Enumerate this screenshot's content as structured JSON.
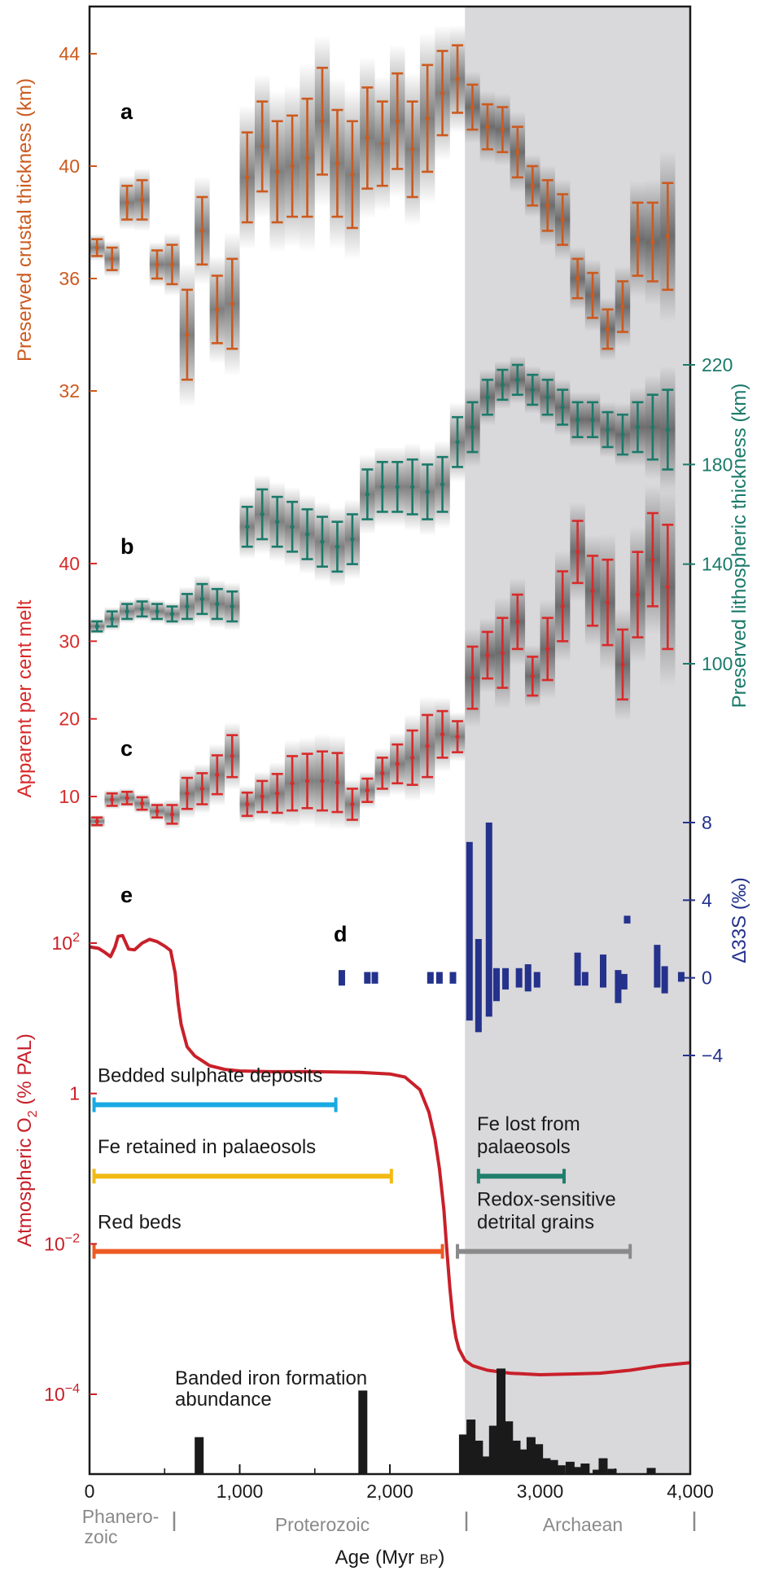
{
  "figure": {
    "xlabel_main": "Age (Myr ",
    "xlabel_suffix": "BP",
    "xlabel_close": ")",
    "panel_labels": [
      "a",
      "b",
      "c",
      "d",
      "e"
    ],
    "eras": [
      "Phanero-",
      "zoic",
      "Proterozoic",
      "Archaean"
    ],
    "colors": {
      "crust": "#cc5a1e",
      "litho": "#1b7a6a",
      "melt": "#d92a2a",
      "sulfur": "#24328c",
      "oxygen": "#c8202a",
      "sulphate": "#19a9e3",
      "fe_retained": "#f2bb14",
      "red_beds": "#ee5a24",
      "fe_lost": "#1f7f6c",
      "detrital": "#8a8a8a",
      "bif": "#1a1a1a",
      "archaean_shade": "#d9d8da"
    }
  },
  "chart_data": {
    "type": "composite",
    "x": {
      "label": "Age (Myr BP)",
      "range": [
        0,
        4000
      ],
      "ticks": [
        0,
        1000,
        2000,
        3000,
        4000
      ],
      "tick_labels": [
        "0",
        "1,000",
        "2,000",
        "3,000",
        "4,000"
      ]
    },
    "archaean_shade_from": 2500,
    "panels": [
      {
        "id": "a",
        "type": "errorbar",
        "ylabel": "Preserved crustal thickness (km)",
        "yticks": [
          32,
          36,
          40,
          44
        ],
        "ylim": [
          31,
          45.5
        ],
        "x": [
          50,
          150,
          250,
          350,
          450,
          550,
          650,
          750,
          850,
          950,
          1050,
          1150,
          1250,
          1350,
          1450,
          1550,
          1650,
          1750,
          1850,
          1950,
          2050,
          2150,
          2250,
          2350,
          2450,
          2550,
          2650,
          2750,
          2850,
          2950,
          3050,
          3150,
          3250,
          3350,
          3450,
          3550,
          3650,
          3750,
          3850
        ],
        "values": [
          37.1,
          36.7,
          38.7,
          38.8,
          36.5,
          36.5,
          34.0,
          37.7,
          34.9,
          35.1,
          39.6,
          40.7,
          39.8,
          40.0,
          40.3,
          41.6,
          40.1,
          39.7,
          41.0,
          40.8,
          41.6,
          40.6,
          41.7,
          42.6,
          43.1,
          42.1,
          41.4,
          41.3,
          40.5,
          39.3,
          38.6,
          38.1,
          36.0,
          35.4,
          34.2,
          35.0,
          37.4,
          37.3,
          37.5
        ],
        "errors": [
          0.3,
          0.4,
          0.6,
          0.7,
          0.5,
          0.7,
          1.6,
          1.2,
          1.2,
          1.6,
          1.6,
          1.6,
          1.8,
          1.8,
          2.1,
          1.9,
          1.9,
          1.9,
          1.8,
          1.5,
          1.7,
          1.7,
          1.9,
          1.5,
          1.2,
          0.8,
          0.8,
          0.8,
          0.9,
          0.7,
          0.9,
          0.9,
          0.7,
          0.8,
          0.7,
          0.9,
          1.3,
          1.4,
          1.9
        ]
      },
      {
        "id": "b",
        "type": "errorbar",
        "ylabel": "Preserved lithospheric thickness (km)",
        "yticks": [
          100,
          140,
          180,
          220
        ],
        "ylim": [
          95,
          225
        ],
        "x": [
          50,
          150,
          250,
          350,
          450,
          550,
          650,
          750,
          850,
          950,
          1050,
          1150,
          1250,
          1350,
          1450,
          1550,
          1650,
          1750,
          1850,
          1950,
          2050,
          2150,
          2250,
          2350,
          2450,
          2550,
          2650,
          2750,
          2850,
          2950,
          3050,
          3150,
          3250,
          3350,
          3450,
          3550,
          3650,
          3750,
          3850
        ],
        "values": [
          115,
          118,
          121,
          122,
          121,
          120,
          123,
          126,
          124,
          123,
          155,
          160,
          157,
          155,
          152,
          149,
          147,
          150,
          168,
          171,
          171,
          171,
          169,
          172,
          189,
          195,
          207,
          212,
          214,
          210,
          207,
          203,
          198,
          198,
          194,
          192,
          195,
          195,
          194
        ],
        "errors": [
          2,
          3,
          3,
          3,
          3,
          3,
          5,
          6,
          6,
          6,
          8,
          10,
          10,
          10,
          10,
          10,
          10,
          10,
          10,
          10,
          10,
          11,
          11,
          11,
          10,
          10,
          7,
          6,
          6,
          6,
          7,
          7,
          7,
          7,
          7,
          8,
          10,
          13,
          16
        ]
      },
      {
        "id": "c",
        "type": "errorbar",
        "ylabel": "Apparent per cent melt",
        "yticks": [
          10,
          20,
          30,
          40
        ],
        "ylim": [
          4,
          47
        ],
        "x": [
          50,
          150,
          250,
          350,
          450,
          550,
          650,
          750,
          850,
          950,
          1050,
          1150,
          1250,
          1350,
          1450,
          1550,
          1650,
          1750,
          1850,
          1950,
          2050,
          2150,
          2250,
          2350,
          2450,
          2550,
          2650,
          2750,
          2850,
          2950,
          3050,
          3150,
          3250,
          3350,
          3450,
          3550,
          3650,
          3750,
          3850
        ],
        "values": [
          6.8,
          9.6,
          9.8,
          9.1,
          8.1,
          7.7,
          10.4,
          11.0,
          12.8,
          15.2,
          9.0,
          10.0,
          10.4,
          11.7,
          12.0,
          12.0,
          11.8,
          9.0,
          10.8,
          13.0,
          14.2,
          15.0,
          16.5,
          18.0,
          17.7,
          25.3,
          28.2,
          28.5,
          32.5,
          25.5,
          29.0,
          34.5,
          41.5,
          36.5,
          35.0,
          27.0,
          36.0,
          40.5,
          37.0
        ],
        "errors": [
          0.5,
          0.8,
          0.8,
          0.8,
          0.8,
          1.2,
          2.0,
          2.0,
          2.5,
          2.7,
          1.5,
          2.0,
          2.5,
          3.5,
          3.5,
          3.8,
          3.8,
          2.0,
          1.5,
          2.0,
          2.5,
          3.5,
          4.0,
          3.0,
          2.0,
          4.0,
          3.0,
          4.5,
          3.5,
          2.5,
          4.0,
          4.5,
          4.0,
          4.5,
          5.5,
          4.5,
          5.5,
          6.0,
          8.0
        ]
      },
      {
        "id": "d",
        "type": "bars",
        "ylabel": "Δ33S (‰)",
        "yticks": [
          -4,
          0,
          4,
          8
        ],
        "ytick_labels": [
          "−4",
          "0",
          "4",
          "8"
        ],
        "ylim": [
          -6,
          9
        ],
        "bars": [
          {
            "x": 1680,
            "lo": -0.4,
            "hi": 0.4
          },
          {
            "x": 1850,
            "lo": -0.3,
            "hi": 0.3
          },
          {
            "x": 1900,
            "lo": -0.3,
            "hi": 0.3
          },
          {
            "x": 2270,
            "lo": -0.3,
            "hi": 0.3
          },
          {
            "x": 2330,
            "lo": -0.3,
            "hi": 0.3
          },
          {
            "x": 2420,
            "lo": -0.3,
            "hi": 0.3
          },
          {
            "x": 2530,
            "lo": -2.2,
            "hi": 7.0
          },
          {
            "x": 2590,
            "lo": -2.8,
            "hi": 2.0
          },
          {
            "x": 2660,
            "lo": -2.0,
            "hi": 8.0
          },
          {
            "x": 2710,
            "lo": -1.2,
            "hi": 0.5
          },
          {
            "x": 2770,
            "lo": -0.6,
            "hi": 0.5
          },
          {
            "x": 2860,
            "lo": -0.5,
            "hi": 0.5
          },
          {
            "x": 2920,
            "lo": -0.7,
            "hi": 0.7
          },
          {
            "x": 2980,
            "lo": -0.5,
            "hi": 0.3
          },
          {
            "x": 3250,
            "lo": -0.4,
            "hi": 1.3
          },
          {
            "x": 3300,
            "lo": -0.4,
            "hi": 0.3
          },
          {
            "x": 3420,
            "lo": -0.5,
            "hi": 1.2
          },
          {
            "x": 3520,
            "lo": -1.3,
            "hi": 0.4
          },
          {
            "x": 3560,
            "lo": -0.6,
            "hi": 0.2
          },
          {
            "x": 3580,
            "lo": 2.8,
            "hi": 3.2
          },
          {
            "x": 3780,
            "lo": -0.5,
            "hi": 1.7
          },
          {
            "x": 3830,
            "lo": -0.8,
            "hi": 0.6
          },
          {
            "x": 3940,
            "lo": -0.2,
            "hi": 0.3
          }
        ]
      },
      {
        "id": "e",
        "type": "line",
        "ylabel": "Atmospheric O2 (% PAL)",
        "ylabel_main": "Atmospheric O",
        "ylabel_sub": "2",
        "ylabel_tail": " (% PAL)",
        "yscale": "log",
        "yticks": [
          -4,
          -2,
          0,
          2
        ],
        "ytick_base": "10",
        "ytick_exponents": [
          "−4",
          "−2",
          "",
          "2"
        ],
        "ytick_one": "1",
        "ylim_log10": [
          -4.3,
          2.4
        ],
        "series": [
          {
            "name": "",
            "x": [
              0,
              60,
              100,
              140,
              170,
              190,
              220,
              260,
              300,
              350,
              400,
              450,
              500,
              540,
              570,
              590,
              610,
              650,
              700,
              800,
              900,
              1000,
              1200,
              1500,
              1800,
              2000,
              2100,
              2200,
              2260,
              2300,
              2330,
              2360,
              2380,
              2400,
              2420,
              2440,
              2460,
              2500,
              2550,
              2650,
              2800,
              3000,
              3200,
              3400,
              3600,
              3800,
              4000
            ],
            "log10": [
              1.95,
              1.93,
              1.88,
              1.82,
              1.95,
              2.09,
              2.1,
              1.92,
              1.91,
              2.0,
              2.05,
              2.02,
              1.96,
              1.9,
              1.6,
              1.2,
              0.92,
              0.62,
              0.5,
              0.37,
              0.32,
              0.3,
              0.29,
              0.29,
              0.28,
              0.26,
              0.22,
              0.05,
              -0.25,
              -0.6,
              -1.0,
              -1.55,
              -2.1,
              -2.6,
              -3.0,
              -3.25,
              -3.4,
              -3.55,
              -3.62,
              -3.68,
              -3.72,
              -3.74,
              -3.73,
              -3.72,
              -3.68,
              -3.62,
              -3.58
            ]
          }
        ],
        "intervals": [
          {
            "label": "Bedded sulphate deposits",
            "from": 30,
            "to": 1640,
            "log10": -0.15,
            "color_key": "sulphate"
          },
          {
            "label": "Fe retained in palaeosols",
            "from": 30,
            "to": 2010,
            "log10": -1.1,
            "color_key": "fe_retained"
          },
          {
            "label": "Red beds",
            "from": 30,
            "to": 2350,
            "log10": -2.1,
            "color_key": "red_beds"
          },
          {
            "label": "Fe lost from palaeosols",
            "label_lines": [
              "Fe lost from",
              "palaeosols"
            ],
            "from": 2590,
            "to": 3160,
            "log10": -1.1,
            "color_key": "fe_lost"
          },
          {
            "label": "Redox-sensitive detrital grains",
            "label_lines": [
              "Redox-sensitive",
              "detrital grains"
            ],
            "from": 2450,
            "to": 3600,
            "log10": -2.1,
            "color_key": "detrital"
          }
        ]
      },
      {
        "id": "bif",
        "type": "bar",
        "label": "Banded iron formation abundance",
        "label_lines": [
          "Banded iron formation",
          "abundance"
        ],
        "bars": [
          {
            "x": 730,
            "h": 0.42
          },
          {
            "x": 1820,
            "h": 0.95
          },
          {
            "x": 2490,
            "h": 0.45
          },
          {
            "x": 2540,
            "h": 0.62
          },
          {
            "x": 2590,
            "h": 0.38
          },
          {
            "x": 2640,
            "h": 0.2
          },
          {
            "x": 2690,
            "h": 0.55
          },
          {
            "x": 2740,
            "h": 1.2
          },
          {
            "x": 2790,
            "h": 0.6
          },
          {
            "x": 2840,
            "h": 0.38
          },
          {
            "x": 2890,
            "h": 0.28
          },
          {
            "x": 2940,
            "h": 0.42
          },
          {
            "x": 2990,
            "h": 0.34
          },
          {
            "x": 3040,
            "h": 0.18
          },
          {
            "x": 3090,
            "h": 0.16
          },
          {
            "x": 3140,
            "h": 0.1
          },
          {
            "x": 3200,
            "h": 0.14
          },
          {
            "x": 3250,
            "h": 0.08
          },
          {
            "x": 3300,
            "h": 0.12
          },
          {
            "x": 3380,
            "h": 0.05
          },
          {
            "x": 3420,
            "h": 0.18
          },
          {
            "x": 3480,
            "h": 0.06
          },
          {
            "x": 3740,
            "h": 0.07
          }
        ]
      }
    ]
  }
}
